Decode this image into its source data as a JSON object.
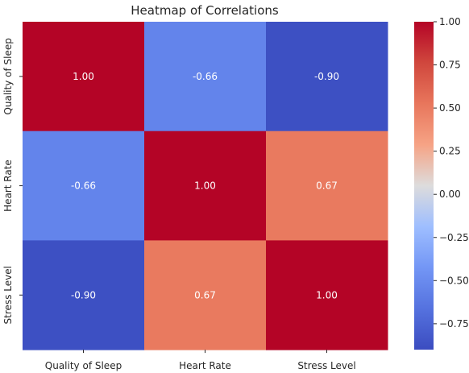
{
  "chart_data": {
    "type": "heatmap",
    "title": "Heatmap of Correlations",
    "x_categories": [
      "Quality of Sleep",
      "Heart Rate",
      "Stress Level"
    ],
    "y_categories": [
      "Quality of Sleep",
      "Heart Rate",
      "Stress Level"
    ],
    "values": [
      [
        1.0,
        -0.66,
        -0.9
      ],
      [
        -0.66,
        1.0,
        0.67
      ],
      [
        -0.9,
        0.67,
        1.0
      ]
    ],
    "value_format": "0.00",
    "colormap": "coolwarm",
    "colors": {
      "1.00": "#b40426",
      "0.67": "#e97a5f",
      "-0.66": "#6384eb",
      "-0.90": "#3d50c3"
    },
    "colorbar": {
      "vmin": -0.9,
      "vmax": 1.0,
      "ticks": [
        1.0,
        0.75,
        0.5,
        0.25,
        0.0,
        -0.25,
        -0.5,
        -0.75
      ],
      "tick_labels": [
        "1.00",
        "0.75",
        "0.50",
        "0.25",
        "0.00",
        "−0.25",
        "−0.50",
        "−0.75"
      ]
    }
  }
}
